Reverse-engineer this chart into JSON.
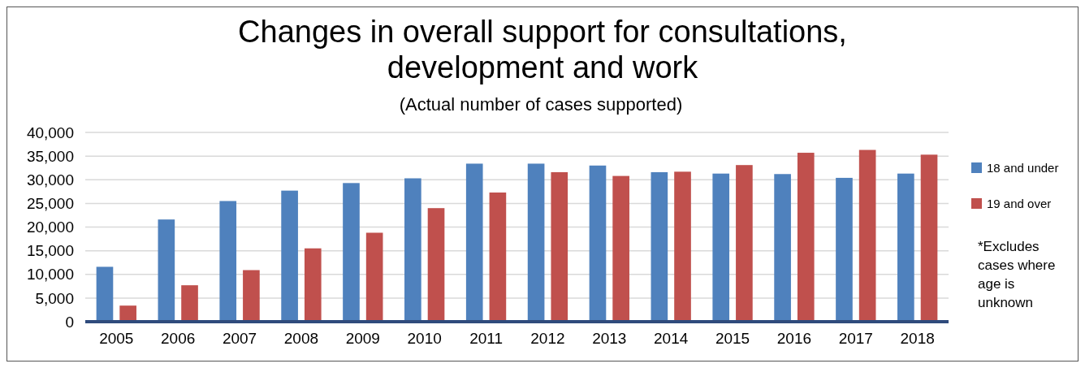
{
  "chart_data": {
    "type": "bar",
    "title": "Changes in overall support for consultations, development and work",
    "subtitle": "(Actual number of cases supported)",
    "categories": [
      "2005",
      "2006",
      "2007",
      "2008",
      "2009",
      "2010",
      "2011",
      "2012",
      "2013",
      "2014",
      "2015",
      "2016",
      "2017",
      "2018"
    ],
    "series": [
      {
        "name": "18 and under",
        "color": "#4f81bd",
        "values": [
          11600,
          21600,
          25500,
          27700,
          29300,
          30300,
          33400,
          33400,
          33000,
          31600,
          31300,
          31200,
          30400,
          31300
        ]
      },
      {
        "name": "19 and over",
        "color": "#c0504d",
        "values": [
          3400,
          7700,
          10900,
          15500,
          18800,
          24000,
          27300,
          31600,
          30800,
          31700,
          33100,
          35700,
          36300,
          35300
        ]
      }
    ],
    "ylim": [
      0,
      40000
    ],
    "yticks": [
      {
        "value": 0,
        "label": "0"
      },
      {
        "value": 5000,
        "label": "5,000"
      },
      {
        "value": 10000,
        "label": "10,000"
      },
      {
        "value": 15000,
        "label": "15,000"
      },
      {
        "value": 20000,
        "label": "20,000"
      },
      {
        "value": 25000,
        "label": "25,000"
      },
      {
        "value": 30000,
        "label": "30,000"
      },
      {
        "value": 35000,
        "label": "35,000"
      },
      {
        "value": 40000,
        "label": "40,000"
      }
    ],
    "grid": "y",
    "legend": "right",
    "annotations": [
      "*Excludes cases where age is unknown"
    ]
  }
}
